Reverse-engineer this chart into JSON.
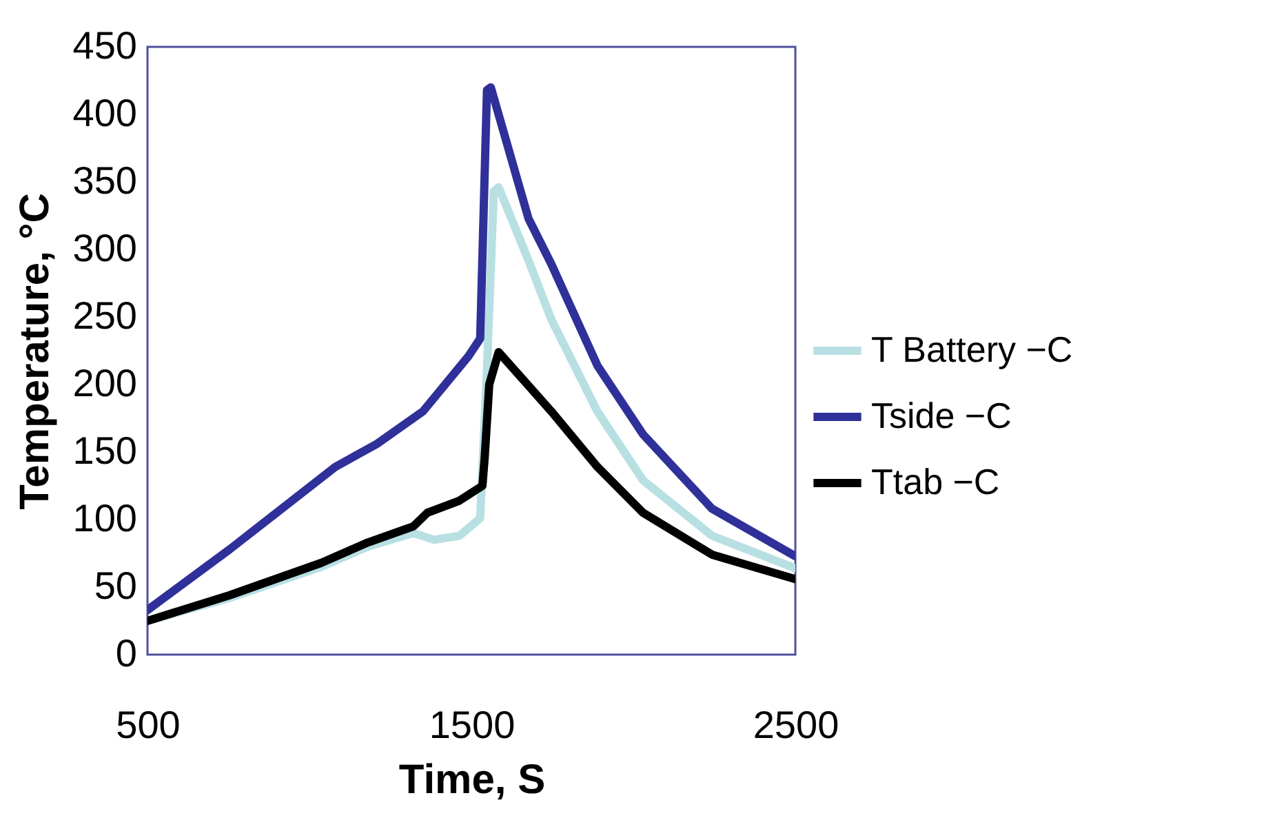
{
  "chart_data": {
    "type": "line",
    "xlabel": "Time, S",
    "ylabel": "Temperature, °C",
    "xlim": [
      500,
      2500
    ],
    "xticks": [
      500,
      1500,
      2500
    ],
    "ylim": [
      0,
      450
    ],
    "yticks": [
      0,
      50,
      100,
      150,
      200,
      250,
      300,
      350,
      400,
      450
    ],
    "grid": false,
    "legend": "right",
    "marker": "none",
    "line_style": "solid",
    "series": [
      {
        "name": "T Battery −C",
        "color": "#b8e0e3",
        "x": [
          500,
          754,
          1037,
          1180,
          1321,
          1385,
          1463,
          1527,
          1548,
          1569,
          1584,
          1676,
          1747,
          1889,
          2030,
          2243,
          2499
        ],
        "values": [
          25,
          42,
          65,
          80,
          90,
          85,
          88,
          101,
          211,
          343,
          346,
          292,
          248,
          180,
          129,
          88,
          64
        ]
      },
      {
        "name": "Tside −C",
        "color": "#30309a",
        "x": [
          500,
          754,
          1080,
          1208,
          1350,
          1491,
          1527,
          1548,
          1560,
          1676,
          1747,
          1889,
          2030,
          2243,
          2499
        ],
        "values": [
          33,
          78,
          139,
          156,
          180,
          221,
          234,
          418,
          420,
          323,
          289,
          214,
          163,
          108,
          73
        ]
      },
      {
        "name": "Ttab −C",
        "color": "#000000",
        "x": [
          500,
          754,
          1037,
          1180,
          1321,
          1364,
          1463,
          1534,
          1541,
          1555,
          1584,
          1747,
          1889,
          2030,
          2243,
          2499
        ],
        "values": [
          25,
          44,
          68,
          83,
          95,
          105,
          114,
          125,
          146,
          200,
          224,
          180,
          139,
          105,
          74,
          56
        ]
      }
    ]
  }
}
